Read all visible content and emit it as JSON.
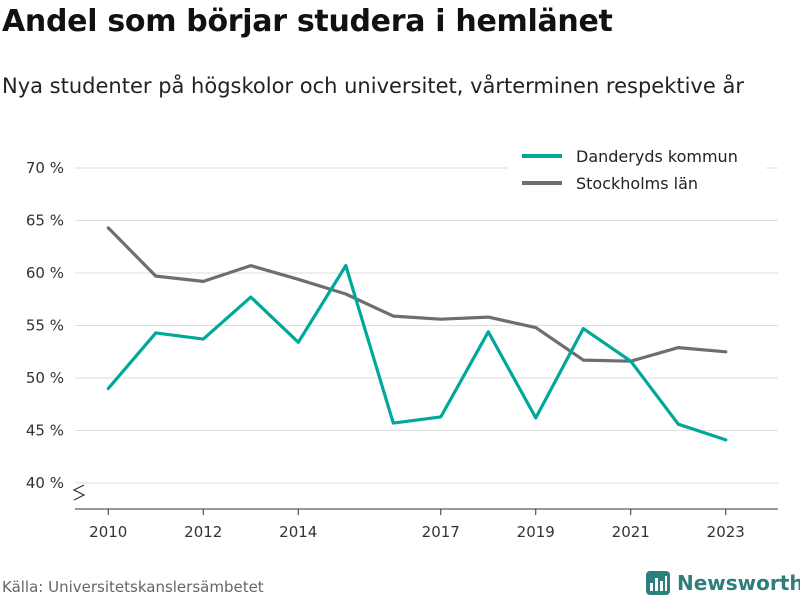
{
  "title": "Andel som börjar studera i hemlänet",
  "subtitle": "Nya studenter på högskolor och universitet, vårterminen respektive år",
  "source": "Källa: Universitetskanslersämbetet",
  "brand": {
    "name": "Newsworthy",
    "icon": "newsworthy-logo-icon",
    "color": "#2d7f7b"
  },
  "chart_data": {
    "type": "line",
    "x": [
      2010,
      2011,
      2012,
      2013,
      2014,
      2015,
      2016,
      2017,
      2018,
      2019,
      2020,
      2021,
      2022,
      2023
    ],
    "x_ticks": [
      2010,
      2012,
      2014,
      2017,
      2019,
      2021,
      2023
    ],
    "y_ticks": [
      {
        "value": 40,
        "label": "40 %"
      },
      {
        "value": 45,
        "label": "45 %"
      },
      {
        "value": 50,
        "label": "50 %"
      },
      {
        "value": 55,
        "label": "55 %"
      },
      {
        "value": 60,
        "label": "60 %"
      },
      {
        "value": 65,
        "label": "65 %"
      },
      {
        "value": 70,
        "label": "70 %"
      }
    ],
    "ylim": [
      40,
      70
    ],
    "axis_break": true,
    "grid": true,
    "legend_position": "top-right",
    "series": [
      {
        "name": "Danderyds kommun",
        "color": "#00a89a",
        "values": [
          49.0,
          54.3,
          53.7,
          57.7,
          53.4,
          60.7,
          45.7,
          46.3,
          54.4,
          46.2,
          54.7,
          51.6,
          45.6,
          44.1
        ]
      },
      {
        "name": "Stockholms län",
        "color": "#6e6d70",
        "values": [
          64.3,
          59.7,
          59.2,
          60.7,
          59.4,
          58.0,
          55.9,
          55.6,
          55.8,
          54.8,
          51.7,
          51.6,
          52.9,
          52.5
        ]
      }
    ]
  }
}
